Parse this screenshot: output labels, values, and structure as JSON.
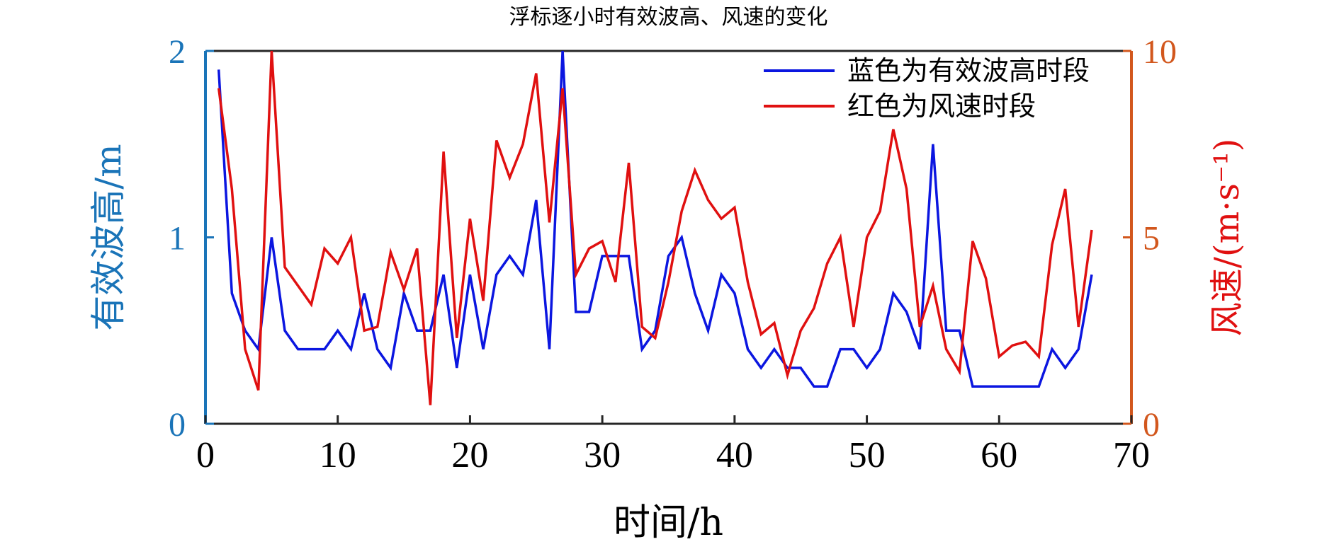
{
  "chart_data": {
    "type": "line",
    "title": "浮标逐小时有效波高、风速的变化",
    "xlabel": "时间/h",
    "ylabel_left": "有效波高/m",
    "ylabel_right": "风速/(m·s⁻¹)",
    "xlim": [
      0,
      70
    ],
    "ylim_left": [
      0,
      2
    ],
    "ylim_right": [
      0,
      10
    ],
    "x_ticks": [
      "0",
      "10",
      "20",
      "30",
      "40",
      "50",
      "60",
      "70"
    ],
    "y_left_ticks": [
      "0",
      "1",
      "2"
    ],
    "y_right_ticks": [
      "0",
      "5",
      "10"
    ],
    "x": [
      1,
      2,
      3,
      4,
      5,
      6,
      7,
      8,
      9,
      10,
      11,
      12,
      13,
      14,
      15,
      16,
      17,
      18,
      19,
      20,
      21,
      22,
      23,
      24,
      25,
      26,
      27,
      28,
      29,
      30,
      31,
      32,
      33,
      34,
      35,
      36,
      37,
      38,
      39,
      40,
      41,
      42,
      43,
      44,
      45,
      46,
      47,
      48,
      49,
      50,
      51,
      52,
      53,
      54,
      55,
      56,
      57,
      58,
      59,
      60,
      61,
      62,
      63,
      64,
      65,
      66,
      67
    ],
    "series": [
      {
        "name": "蓝色为有效波高时段",
        "axis": "left",
        "color": "#0b16e0",
        "values": [
          1.9,
          0.7,
          0.5,
          0.4,
          1.0,
          0.5,
          0.4,
          0.4,
          0.4,
          0.5,
          0.4,
          0.7,
          0.4,
          0.3,
          0.7,
          0.5,
          0.5,
          0.8,
          0.3,
          0.8,
          0.4,
          0.8,
          0.9,
          0.8,
          1.2,
          0.4,
          2.0,
          0.6,
          0.6,
          0.9,
          0.9,
          0.9,
          0.4,
          0.5,
          0.9,
          1.0,
          0.7,
          0.5,
          0.8,
          0.7,
          0.4,
          0.3,
          0.4,
          0.3,
          0.3,
          0.2,
          0.2,
          0.4,
          0.4,
          0.3,
          0.4,
          0.7,
          0.6,
          0.4,
          1.5,
          0.5,
          0.5,
          0.2,
          0.2,
          0.2,
          0.2,
          0.2,
          0.2,
          0.4,
          0.3,
          0.4,
          0.8
        ]
      },
      {
        "name": "红色为风速时段",
        "axis": "right",
        "color": "#e01010",
        "values": [
          9.0,
          6.3,
          2.0,
          0.9,
          10.0,
          4.2,
          3.7,
          3.2,
          4.7,
          4.3,
          5.0,
          2.5,
          2.6,
          4.6,
          3.6,
          4.7,
          0.5,
          7.3,
          2.3,
          5.5,
          3.3,
          7.6,
          6.6,
          7.5,
          9.4,
          5.4,
          9.0,
          4.0,
          4.7,
          4.9,
          3.8,
          7.0,
          2.6,
          2.3,
          3.8,
          5.7,
          6.8,
          6.0,
          5.5,
          5.8,
          3.8,
          2.4,
          2.7,
          1.3,
          2.5,
          3.1,
          4.3,
          5.0,
          2.6,
          5.0,
          5.7,
          7.9,
          6.3,
          2.6,
          3.7,
          2.0,
          1.4,
          4.9,
          3.9,
          1.8,
          2.1,
          2.2,
          1.8,
          4.8,
          6.3,
          2.6,
          5.2
        ]
      }
    ],
    "legend_position": "top-right",
    "grid": false
  }
}
